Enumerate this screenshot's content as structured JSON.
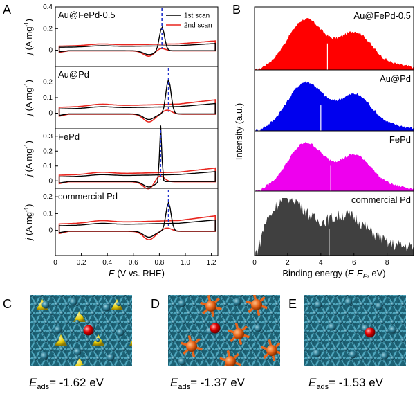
{
  "panels": {
    "a": "A",
    "b": "B",
    "c": "C",
    "d": "D",
    "e": "E"
  },
  "colors": {
    "scan1": "#000000",
    "scan2": "#e8251e",
    "peak_marker": "#2233cc",
    "spectrum": [
      "#ff0000",
      "#0000ee",
      "#ee00ee",
      "#404040"
    ],
    "pd_atom": "#2f7d95",
    "au_atom": "#f0d000",
    "fe_atom": "#e8651a",
    "o_atom": "#e00000"
  },
  "chart_data": [
    {
      "type": "line",
      "xlabel_italic": "E",
      "xlabel_rest": " (V vs. RHE)",
      "ylabel_italic": "j",
      "ylabel_rest": " (A mg",
      "ylabel_sup": "-1",
      "ylabel_close": ")",
      "x_ticks": [
        "0",
        "0.2",
        "0.4",
        "0.6",
        "0.8",
        "1.0",
        "1.2"
      ],
      "xlim": [
        0.0,
        1.25
      ],
      "legend": [
        {
          "name": "1st scan",
          "color": "#000000"
        },
        {
          "name": "2nd scan",
          "color": "#e8251e"
        }
      ],
      "panels": [
        {
          "name": "Au@FePd-0.5",
          "ylim": [
            -0.15,
            0.4
          ],
          "y_ticks": [
            0.0,
            0.2,
            0.4
          ],
          "y_tick_labels": [
            "0",
            "0.2",
            "0.4"
          ],
          "peak_position": 0.82,
          "peak_height": 0.22
        },
        {
          "name": "Au@Pd",
          "ylim": [
            -0.1,
            0.3
          ],
          "y_ticks": [
            0.0,
            0.1,
            0.2
          ],
          "y_tick_labels": [
            "0",
            "0.1",
            "0.2"
          ],
          "peak_position": 0.87,
          "peak_height": 0.22
        },
        {
          "name": "FePd",
          "ylim": [
            -0.05,
            0.35
          ],
          "y_ticks": [
            0.0,
            0.1,
            0.2,
            0.3
          ],
          "y_tick_labels": [
            "0",
            "0.1",
            "0.2",
            "0.3"
          ],
          "peak_position": 0.81,
          "peak_height": 0.38
        },
        {
          "name": "commercial Pd",
          "ylim": [
            -0.15,
            0.25
          ],
          "y_ticks": [
            0.0,
            0.1,
            0.2
          ],
          "y_tick_labels": [
            "0",
            "0.1",
            "0.2"
          ],
          "peak_position": 0.87,
          "peak_height": 0.17
        }
      ]
    },
    {
      "type": "area",
      "xlabel_main": "Binding energy (",
      "xlabel_italic": "E-E",
      "xlabel_sub": "F",
      "xlabel_tail": ", eV)",
      "ylabel": "Intensity (a.u.)",
      "x_ticks": [
        "0",
        "2",
        "4",
        "6",
        "8"
      ],
      "xlim": [
        0,
        9.6
      ],
      "series": [
        {
          "name": "Au@FePd-0.5",
          "d_band_center": 4.4
        },
        {
          "name": "Au@Pd",
          "d_band_center": 4.0
        },
        {
          "name": "FePd",
          "d_band_center": 4.6
        },
        {
          "name": "commercial Pd",
          "d_band_center": 4.5
        }
      ]
    }
  ],
  "structures": [
    {
      "panel": "C",
      "label": "E",
      "sub": "ads",
      "value": "= -1.62 eV"
    },
    {
      "panel": "D",
      "label": "E",
      "sub": "ads",
      "value": "= -1.37 eV"
    },
    {
      "panel": "E",
      "label": "E",
      "sub": "ads",
      "value": "= -1.53 eV"
    }
  ]
}
